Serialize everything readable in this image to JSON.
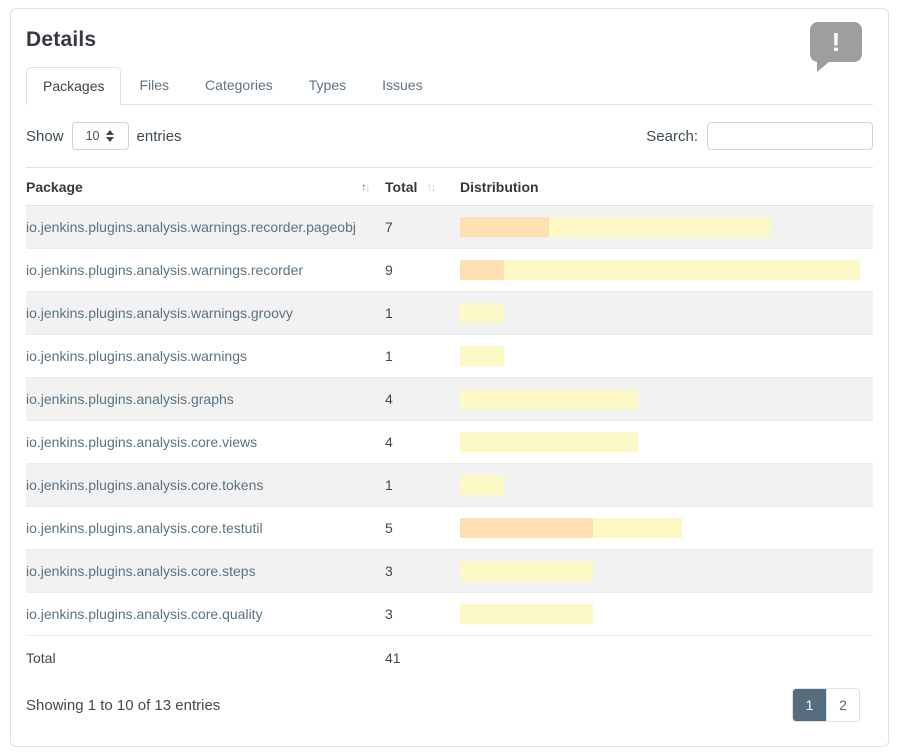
{
  "header": {
    "title": "Details",
    "badge_glyph": "!"
  },
  "tabs": [
    {
      "label": "Packages",
      "active": true
    },
    {
      "label": "Files",
      "active": false
    },
    {
      "label": "Categories",
      "active": false
    },
    {
      "label": "Types",
      "active": false
    },
    {
      "label": "Issues",
      "active": false
    }
  ],
  "controls": {
    "show_label": "Show",
    "page_length": "10",
    "entries_label": "entries",
    "search_label": "Search:",
    "search_value": ""
  },
  "table": {
    "columns": [
      "Package",
      "Total",
      "Distribution"
    ],
    "rows": [
      {
        "package": "io.jenkins.plugins.analysis.warnings.recorder.pageobj",
        "total": 7,
        "severities": {
          "high": 2,
          "normal": 5
        }
      },
      {
        "package": "io.jenkins.plugins.analysis.warnings.recorder",
        "total": 9,
        "severities": {
          "high": 1,
          "normal": 8
        }
      },
      {
        "package": "io.jenkins.plugins.analysis.warnings.groovy",
        "total": 1,
        "severities": {
          "high": 0,
          "normal": 1
        }
      },
      {
        "package": "io.jenkins.plugins.analysis.warnings",
        "total": 1,
        "severities": {
          "high": 0,
          "normal": 1
        }
      },
      {
        "package": "io.jenkins.plugins.analysis.graphs",
        "total": 4,
        "severities": {
          "high": 0,
          "normal": 4
        }
      },
      {
        "package": "io.jenkins.plugins.analysis.core.views",
        "total": 4,
        "severities": {
          "high": 0,
          "normal": 4
        }
      },
      {
        "package": "io.jenkins.plugins.analysis.core.tokens",
        "total": 1,
        "severities": {
          "high": 0,
          "normal": 1
        }
      },
      {
        "package": "io.jenkins.plugins.analysis.core.testutil",
        "total": 5,
        "severities": {
          "high": 3,
          "normal": 2
        }
      },
      {
        "package": "io.jenkins.plugins.analysis.core.steps",
        "total": 3,
        "severities": {
          "high": 0,
          "normal": 3
        }
      },
      {
        "package": "io.jenkins.plugins.analysis.core.quality",
        "total": 3,
        "severities": {
          "high": 0,
          "normal": 3
        }
      }
    ],
    "footer": {
      "label": "Total",
      "total": 41
    }
  },
  "pagination": {
    "info": "Showing 1 to 10 of 13 entries",
    "pages": [
      {
        "label": "1",
        "active": true
      },
      {
        "label": "2",
        "active": false
      }
    ]
  },
  "colors": {
    "severity_high": "#fee0b2",
    "severity_normal": "#fdf9c6",
    "accent": "#546e7d",
    "icon_gray": "#9e9e9e"
  }
}
